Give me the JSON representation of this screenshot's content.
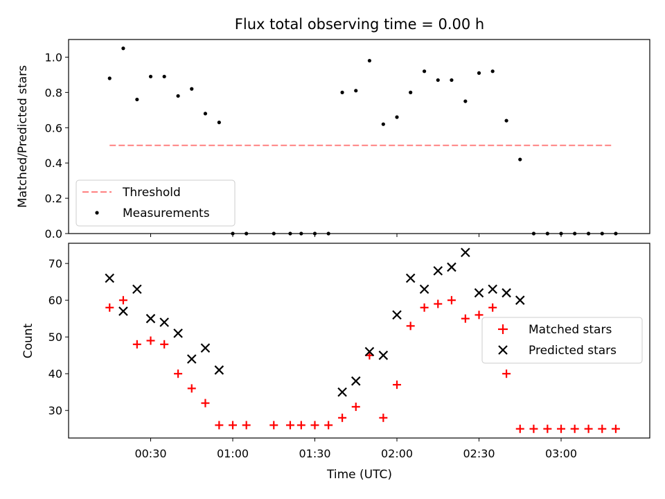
{
  "chart_data": [
    {
      "type": "scatter",
      "title": "Flux total observing time = 0.00 h",
      "ylabel": "Matched/Predicted stars",
      "xlabel": "",
      "ylim": [
        0.0,
        1.1
      ],
      "yticks": [
        "0.0",
        "0.2",
        "0.4",
        "0.6",
        "0.8",
        "1.0"
      ],
      "xlim": [
        0.0,
        3.54
      ],
      "legend_position": "lower-left",
      "series": [
        {
          "name": "Threshold",
          "kind": "dashed-line",
          "color": "#ff8080",
          "x": [
            0.25,
            3.32
          ],
          "y": [
            0.5,
            0.5
          ]
        },
        {
          "name": "Measurements",
          "kind": "dot",
          "color": "#000000",
          "x": [
            0.25,
            0.333,
            0.417,
            0.5,
            0.583,
            0.667,
            0.75,
            0.833,
            0.917,
            1.0,
            1.083,
            1.25,
            1.35,
            1.417,
            1.5,
            1.583,
            1.667,
            1.75,
            1.833,
            1.917,
            2.0,
            2.083,
            2.167,
            2.25,
            2.333,
            2.417,
            2.5,
            2.583,
            2.667,
            2.75,
            2.833,
            2.917,
            3.0,
            3.083,
            3.167,
            3.25,
            3.333
          ],
          "y": [
            0.88,
            1.05,
            0.76,
            0.89,
            0.89,
            0.78,
            0.82,
            0.68,
            0.63,
            0.0,
            0.0,
            0.0,
            0.0,
            0.0,
            0.0,
            0.0,
            0.8,
            0.81,
            0.98,
            0.62,
            0.66,
            0.8,
            0.92,
            0.87,
            0.87,
            0.75,
            0.91,
            0.92,
            0.64,
            0.42,
            0.0,
            0.0,
            0.0,
            0.0,
            0.0,
            0.0,
            0.0
          ]
        }
      ]
    },
    {
      "type": "scatter",
      "xlabel": "Time (UTC)",
      "ylabel": "Count",
      "ylim": [
        22.5,
        75.5
      ],
      "yticks": [
        "30",
        "40",
        "50",
        "60",
        "70"
      ],
      "xlim": [
        0.0,
        3.54
      ],
      "xticks": [
        "00:30",
        "01:00",
        "01:30",
        "02:00",
        "02:30",
        "03:00"
      ],
      "legend_position": "center-right",
      "series": [
        {
          "name": "Matched stars",
          "kind": "plus",
          "color": "#ff0000",
          "x": [
            0.25,
            0.333,
            0.417,
            0.5,
            0.583,
            0.667,
            0.75,
            0.833,
            0.917,
            1.0,
            1.083,
            1.25,
            1.35,
            1.417,
            1.5,
            1.583,
            1.667,
            1.75,
            1.833,
            1.917,
            2.0,
            2.083,
            2.167,
            2.25,
            2.333,
            2.417,
            2.5,
            2.583,
            2.667,
            2.75,
            2.833,
            2.917,
            3.0,
            3.083,
            3.167,
            3.25,
            3.333
          ],
          "y": [
            58,
            60,
            48,
            49,
            48,
            40,
            36,
            32,
            26,
            26,
            26,
            26,
            26,
            26,
            26,
            26,
            28,
            31,
            45,
            28,
            37,
            53,
            58,
            59,
            60,
            55,
            56,
            58,
            40,
            25,
            25,
            25,
            25,
            25,
            25,
            25,
            25
          ]
        },
        {
          "name": "Predicted stars",
          "kind": "cross",
          "color": "#000000",
          "x": [
            0.25,
            0.333,
            0.417,
            0.5,
            0.583,
            0.667,
            0.75,
            0.833,
            0.917,
            1.667,
            1.75,
            1.833,
            1.917,
            2.0,
            2.083,
            2.167,
            2.25,
            2.333,
            2.417,
            2.5,
            2.583,
            2.667,
            2.75
          ],
          "y": [
            66,
            57,
            63,
            55,
            54,
            51,
            44,
            47,
            41,
            35,
            38,
            46,
            45,
            56,
            66,
            63,
            68,
            69,
            73,
            62,
            63,
            62,
            60
          ]
        }
      ]
    }
  ]
}
